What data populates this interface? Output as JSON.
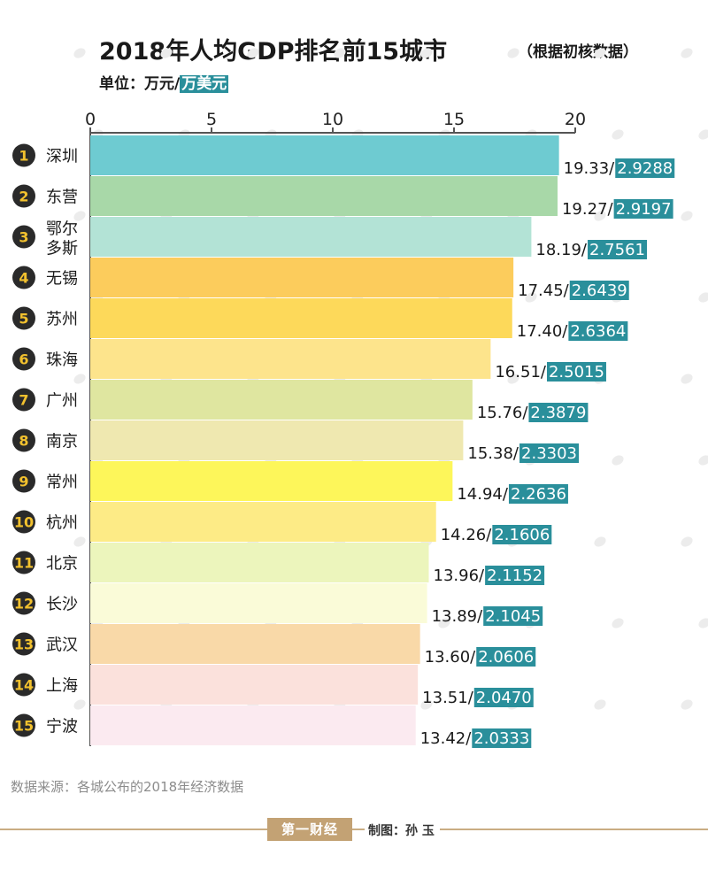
{
  "title": "2018年人均GDP排名前15城市",
  "note": "（根据初核数据）",
  "unit": {
    "prefix": "单位：万元/",
    "usd": "万美元"
  },
  "source": "数据来源：各城公布的2018年经济数据",
  "logo": "第一财经",
  "credit": "制图：孙  玉",
  "chart_data": {
    "type": "bar",
    "orientation": "horizontal",
    "x_axis_position": "top",
    "xlim": [
      0,
      20
    ],
    "ticks": [
      0,
      5,
      10,
      15,
      20
    ],
    "categories": [
      "深圳",
      "东营",
      "鄂尔多斯",
      "无锡",
      "苏州",
      "珠海",
      "广州",
      "南京",
      "常州",
      "杭州",
      "北京",
      "长沙",
      "武汉",
      "上海",
      "宁波"
    ],
    "ranks": [
      "1",
      "2",
      "3",
      "4",
      "5",
      "6",
      "7",
      "8",
      "9",
      "10",
      "11",
      "12",
      "13",
      "14",
      "15"
    ],
    "series": [
      {
        "values": [
          19.33,
          19.27,
          18.19,
          17.45,
          17.4,
          16.51,
          15.76,
          15.38,
          14.94,
          14.26,
          13.96,
          13.89,
          13.6,
          13.51,
          13.42
        ]
      }
    ],
    "value_labels": [
      "19.33/",
      "19.27/",
      "18.19/",
      "17.45/",
      "17.40/",
      "16.51/",
      "15.76/",
      "15.38/",
      "14.94/",
      "14.26/",
      "13.96/",
      "13.89/",
      "13.60/",
      "13.51/",
      "13.42/"
    ],
    "usd_labels": [
      "2.9288",
      "2.9197",
      "2.7561",
      "2.6439",
      "2.6364",
      "2.5015",
      "2.3879",
      "2.3303",
      "2.2636",
      "2.1606",
      "2.1152",
      "2.1045",
      "2.0606",
      "2.0470",
      "2.0333"
    ],
    "colors": [
      "#6ecbd1",
      "#a8d8a8",
      "#b3e3d6",
      "#fccc5c",
      "#fdd95a",
      "#fde48c",
      "#dfe6a0",
      "#efe8b0",
      "#fdf65a",
      "#fdeb86",
      "#ecf5bc",
      "#fafbd8",
      "#f9d9a8",
      "#fbe1dc",
      "#fbeaf0"
    ],
    "accent_colors": {
      "badge": "#2a2a2a",
      "badge_text": "#f2c12e",
      "usd_box": "#2a8f9b",
      "axis": "#555555"
    }
  }
}
